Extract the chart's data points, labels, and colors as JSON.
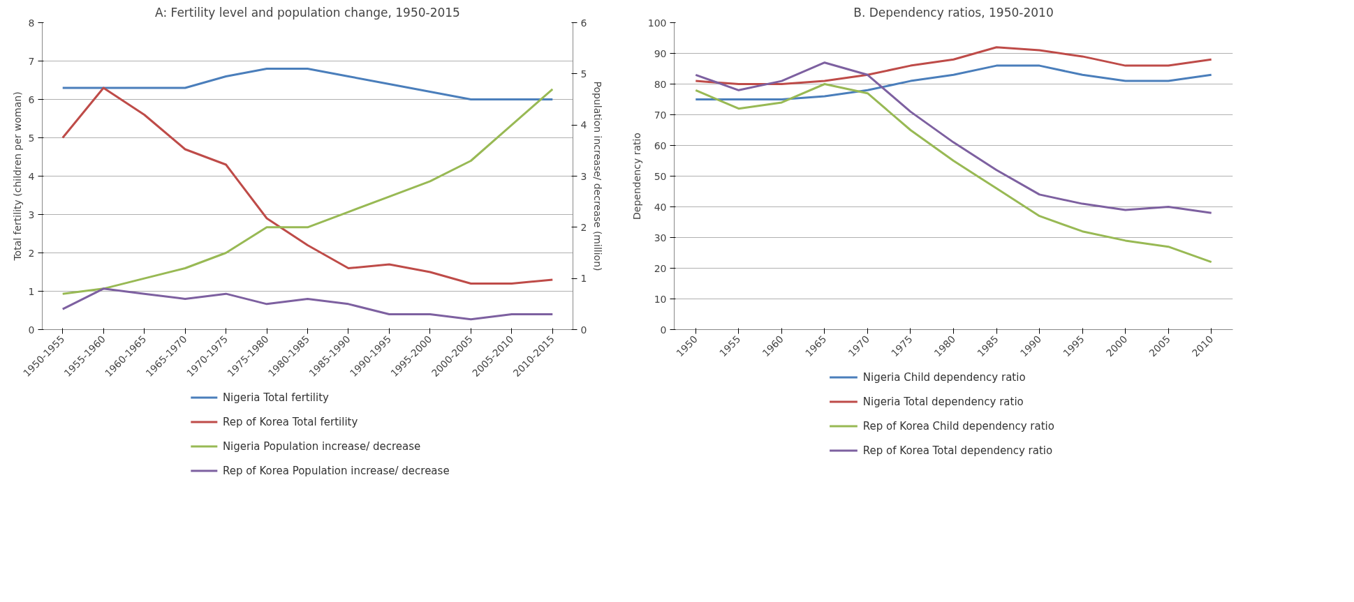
{
  "chart_data": [
    {
      "type": "line",
      "title": "A: Fertility level and population change, 1950-2015",
      "ylabel": "Total fertility (children per woman)",
      "y2label": "Population increase/ decrease (million)",
      "categories": [
        "1950-1955",
        "1955-1960",
        "1960-1965",
        "1965-1970",
        "1970-1975",
        "1975-1980",
        "1980-1985",
        "1985-1990",
        "1990-1995",
        "1995-2000",
        "2000-2005",
        "2005-2010",
        "2010-2015"
      ],
      "ylim": [
        0,
        8
      ],
      "yticks": [
        0,
        1,
        2,
        3,
        4,
        5,
        6,
        7,
        8
      ],
      "y2lim": [
        0,
        6
      ],
      "y2ticks": [
        0,
        1,
        2,
        3,
        4,
        5,
        6
      ],
      "grid": "y",
      "legend": "bottom",
      "series": [
        {
          "name": "Nigeria Total fertility",
          "color": "#4a7ebb",
          "values": [
            6.3,
            6.3,
            6.3,
            6.3,
            6.6,
            6.8,
            6.8,
            6.6,
            6.4,
            6.2,
            6.0,
            6.0,
            6.0
          ]
        },
        {
          "name": "Rep of Korea Total fertility",
          "color": "#be4b48",
          "values": [
            5.0,
            6.3,
            5.6,
            4.7,
            4.3,
            2.9,
            2.2,
            1.6,
            1.7,
            1.5,
            1.2,
            1.2,
            1.3
          ]
        },
        {
          "name": "Nigeria Population increase/ decrease",
          "color": "#98b954",
          "axis": "y2",
          "values": [
            0.7,
            0.8,
            1.0,
            1.2,
            1.5,
            2.0,
            2.0,
            2.3,
            2.6,
            2.9,
            3.3,
            4.0,
            4.7
          ]
        },
        {
          "name": "Rep of Korea Population increase/ decrease",
          "color": "#7d60a0",
          "axis": "y2",
          "values": [
            0.4,
            0.8,
            0.7,
            0.6,
            0.7,
            0.5,
            0.6,
            0.5,
            0.3,
            0.3,
            0.2,
            0.3,
            0.3
          ]
        }
      ]
    },
    {
      "type": "line",
      "title": "B. Dependency ratios, 1950-2010",
      "ylabel": "Dependency ratio",
      "categories": [
        "1950",
        "1955",
        "1960",
        "1965",
        "1970",
        "1975",
        "1980",
        "1985",
        "1990",
        "1995",
        "2000",
        "2005",
        "2010"
      ],
      "ylim": [
        0,
        100
      ],
      "yticks": [
        0,
        10,
        20,
        30,
        40,
        50,
        60,
        70,
        80,
        90,
        100
      ],
      "grid": "y",
      "legend": "bottom",
      "series": [
        {
          "name": "Nigeria Child dependency ratio",
          "color": "#4a7ebb",
          "values": [
            75,
            75,
            75,
            76,
            78,
            81,
            83,
            86,
            86,
            83,
            81,
            81,
            83
          ]
        },
        {
          "name": "Nigeria Total dependency ratio",
          "color": "#be4b48",
          "values": [
            81,
            80,
            80,
            81,
            83,
            86,
            88,
            92,
            91,
            89,
            86,
            86,
            88
          ]
        },
        {
          "name": "Rep of Korea Child dependency ratio",
          "color": "#98b954",
          "values": [
            78,
            72,
            74,
            80,
            77,
            65,
            55,
            46,
            37,
            32,
            29,
            27,
            22
          ]
        },
        {
          "name": "Rep of Korea Total dependency ratio",
          "color": "#7d60a0",
          "values": [
            83,
            78,
            81,
            87,
            83,
            71,
            61,
            52,
            44,
            41,
            39,
            40,
            38
          ]
        }
      ]
    }
  ]
}
